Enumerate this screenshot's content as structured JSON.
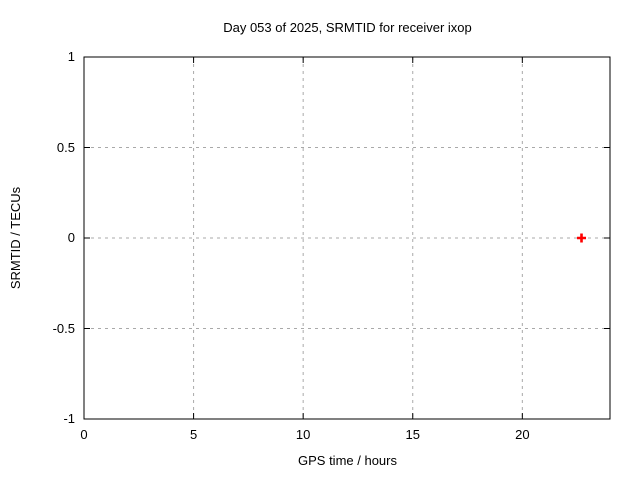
{
  "chart_data": {
    "type": "scatter",
    "title": "Day 053 of 2025, SRMTID for receiver ixop",
    "xlabel": "GPS time / hours",
    "ylabel": "SRMTID / TECUs",
    "xlim": [
      0,
      24
    ],
    "ylim": [
      -1,
      1
    ],
    "xticks": {
      "values": [
        0,
        5,
        10,
        15,
        20
      ],
      "labels": [
        "0",
        "5",
        "10",
        "15",
        "20"
      ]
    },
    "yticks": {
      "values": [
        1,
        0.5,
        0,
        -0.5,
        -1
      ],
      "labels": [
        "1",
        "0.5",
        "0",
        "-0.5",
        "-1"
      ]
    },
    "grid": {
      "visible": true,
      "style": "dashed",
      "color": "#a9a9a9"
    },
    "legend": "none",
    "series": [
      {
        "name": "SRMTID",
        "marker": "plus",
        "color": "#ff0000",
        "points": [
          {
            "x": 22.7,
            "y": 0.0
          }
        ]
      }
    ]
  },
  "colors": {
    "background": "#ffffff",
    "border": "#000000",
    "text": "#000000"
  }
}
